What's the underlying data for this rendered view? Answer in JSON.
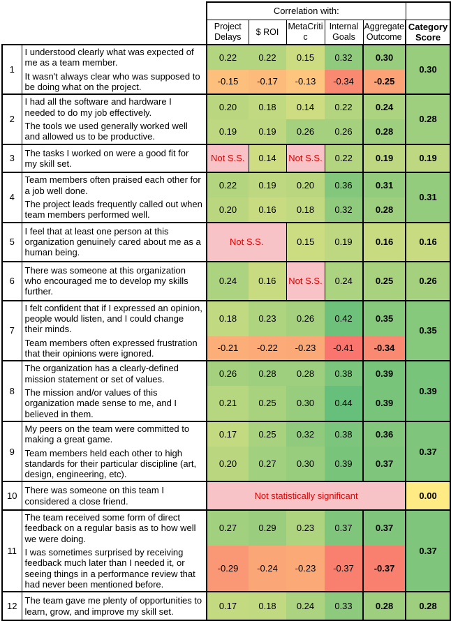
{
  "chart_data": {
    "type": "table",
    "title": "Correlation with:",
    "columns": [
      "Project Delays",
      "$ ROI",
      "MetaCritic",
      "Internal Goals",
      "Aggregate Outcome"
    ],
    "category_score_label": "Category Score",
    "not_significant_short": "Not S.S.",
    "not_significant_long": "Not statistically significant",
    "color_scale": {
      "min": -0.45,
      "mid": 0,
      "max": 0.45,
      "min_color": "#F8696B",
      "mid_color": "#FFEB84",
      "max_color": "#63BE7A",
      "not_significant_bg": "#F8C3C6",
      "not_significant_text": "#E00000",
      "border_color": "#000000"
    },
    "categories": [
      {
        "number": "1",
        "score": "0.30",
        "questions": [
          {
            "text": "I understood clearly what was expected of me as a team member.",
            "values": [
              "0.22",
              "0.22",
              "0.15",
              "0.32",
              "0.30"
            ]
          },
          {
            "text": "It wasn't always clear who was supposed to be doing what on the project.",
            "values": [
              "-0.15",
              "-0.17",
              "-0.13",
              "-0.34",
              "-0.25"
            ]
          }
        ]
      },
      {
        "number": "2",
        "score": "0.28",
        "questions": [
          {
            "text": "I had all the software and hardware I needed to do my job effectively.",
            "values": [
              "0.20",
              "0.18",
              "0.14",
              "0.22",
              "0.24"
            ]
          },
          {
            "text": "The tools we used generally worked well and allowed us to be productive.",
            "values": [
              "0.19",
              "0.19",
              "0.26",
              "0.26",
              "0.28"
            ]
          }
        ]
      },
      {
        "number": "3",
        "score": "0.19",
        "questions": [
          {
            "text": "The tasks I worked on were a good fit for my skill set.",
            "values": [
              {
                "text": "Not S.S.",
                "span": 1
              },
              "0.14",
              {
                "text": "Not S.S.",
                "span": 1
              },
              "0.22",
              "0.19"
            ]
          }
        ]
      },
      {
        "number": "4",
        "score": "0.31",
        "questions": [
          {
            "text": "Team members often praised each other for a job well done.",
            "values": [
              "0.22",
              "0.19",
              "0.20",
              "0.36",
              "0.31"
            ]
          },
          {
            "text": "The project leads frequently called out when team members performed well.",
            "values": [
              "0.20",
              "0.16",
              "0.18",
              "0.32",
              "0.28"
            ]
          }
        ]
      },
      {
        "number": "5",
        "score": "0.16",
        "questions": [
          {
            "text": "I feel that at least one person at this organization genuinely cared about me as a human being.",
            "values": [
              {
                "text": "Not S.S.",
                "span": 2
              },
              "0.15",
              "0.19",
              "0.16"
            ]
          }
        ]
      },
      {
        "number": "6",
        "score": "0.26",
        "questions": [
          {
            "text": "There was someone at this organization who encouraged me to develop my skills further.",
            "values": [
              "0.24",
              "0.16",
              {
                "text": "Not S.S.",
                "span": 1
              },
              "0.24",
              "0.25"
            ]
          }
        ]
      },
      {
        "number": "7",
        "score": "0.35",
        "questions": [
          {
            "text": "I felt confident that if I expressed an opinion, people would listen, and I could change their minds.",
            "values": [
              "0.18",
              "0.23",
              "0.26",
              "0.42",
              "0.35"
            ]
          },
          {
            "text": "Team members often expressed frustration that their opinions were ignored.",
            "values": [
              "-0.21",
              "-0.22",
              "-0.23",
              "-0.41",
              "-0.34"
            ]
          }
        ]
      },
      {
        "number": "8",
        "score": "0.39",
        "questions": [
          {
            "text": "The organization has a clearly-defined mission statement or set of values.",
            "values": [
              "0.26",
              "0.28",
              "0.28",
              "0.38",
              "0.39"
            ]
          },
          {
            "text": "The mission and/or values of this organization made sense to me, and I believed in them.",
            "values": [
              "0.21",
              "0.25",
              "0.30",
              "0.44",
              "0.39"
            ]
          }
        ]
      },
      {
        "number": "9",
        "score": "0.37",
        "questions": [
          {
            "text": "My peers on the team were committed to making a great game.",
            "values": [
              "0.17",
              "0.25",
              "0.32",
              "0.38",
              "0.36"
            ]
          },
          {
            "text": "Team members held each other to high standards for their particular discipline (art, design, engineering, etc).",
            "values": [
              "0.20",
              "0.27",
              "0.30",
              "0.39",
              "0.37"
            ]
          }
        ]
      },
      {
        "number": "10",
        "score": "0.00",
        "questions": [
          {
            "text": "There was someone on this team I considered a close friend.",
            "values": [
              {
                "text": "Not statistically significant",
                "span": 5
              }
            ]
          }
        ]
      },
      {
        "number": "11",
        "score": "0.37",
        "questions": [
          {
            "text": "The team received some form of direct feedback on a regular basis as to how well we were doing.",
            "values": [
              "0.27",
              "0.29",
              "0.23",
              "0.37",
              "0.37"
            ]
          },
          {
            "text": "I was sometimes surprised by receiving feedback much later than I needed it, or seeing things in a performance review that had never been mentioned before.",
            "values": [
              "-0.29",
              "-0.24",
              "-0.23",
              "-0.37",
              "-0.37"
            ]
          }
        ]
      },
      {
        "number": "12",
        "score": "0.28",
        "questions": [
          {
            "text": "The team gave me plenty of opportunities to learn, grow, and improve my skill set.",
            "values": [
              "0.17",
              "0.18",
              "0.24",
              "0.33",
              "0.28"
            ]
          }
        ]
      }
    ]
  }
}
